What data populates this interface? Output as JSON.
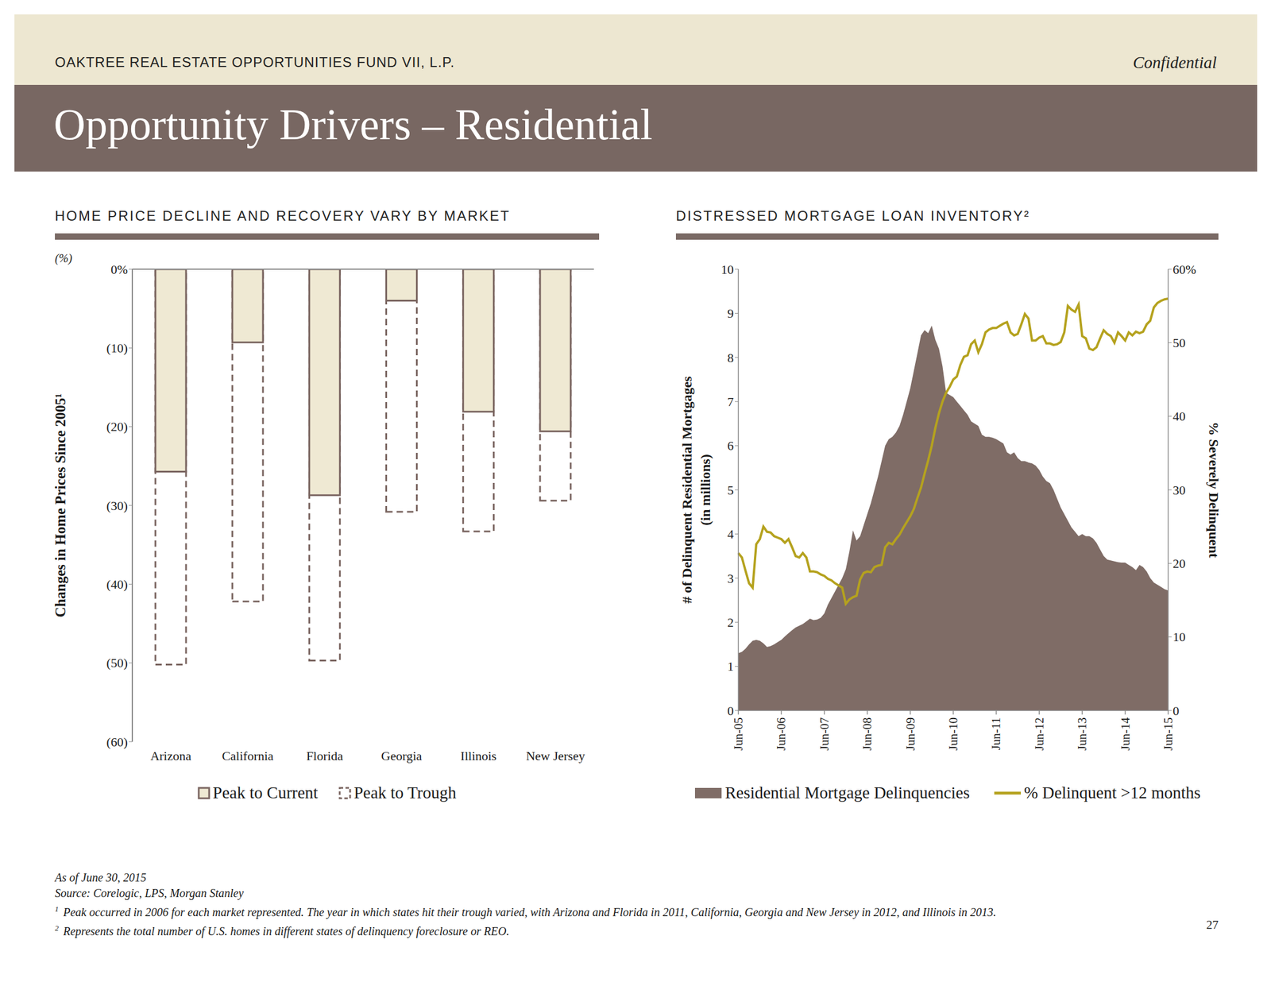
{
  "header": {
    "fund": "OAKTREE REAL ESTATE OPPORTUNITIES FUND VII, L.P.",
    "confidential": "Confidential",
    "title": "Opportunity Drivers – Residential"
  },
  "chart_data": [
    {
      "type": "bar",
      "title": "HOME PRICE DECLINE AND RECOVERY VARY BY MARKET",
      "annotation": "(%)",
      "ylabel": "Changes in Home Prices Since 2005¹",
      "categories": [
        "Arizona",
        "California",
        "Florida",
        "Georgia",
        "Illinois",
        "New Jersey"
      ],
      "series": [
        {
          "name": "Peak to Current",
          "color": "#efe9d3",
          "values": [
            -25.7,
            -9.3,
            -28.7,
            -4.0,
            -18.1,
            -20.6
          ]
        },
        {
          "name": "Peak to Trough",
          "color": "#7a6560",
          "line_style": "dashed",
          "values": [
            -50.2,
            -42.2,
            -49.7,
            -30.8,
            -33.3,
            -29.4
          ]
        }
      ],
      "ylim": [
        -60,
        0
      ],
      "yticks": [
        {
          "value": 0,
          "label": "0%"
        },
        {
          "value": -10,
          "label": "(10)"
        },
        {
          "value": -20,
          "label": "(20)"
        },
        {
          "value": -30,
          "label": "(30)"
        },
        {
          "value": -40,
          "label": "(40)"
        },
        {
          "value": -50,
          "label": "(50)"
        },
        {
          "value": -60,
          "label": "(60)"
        }
      ],
      "grid": false,
      "legend": "bottom"
    },
    {
      "type": "combo",
      "title": "DISTRESSED MORTGAGE LOAN INVENTORY²",
      "ylabel": [
        "# of Delinquent Residential Mortgages",
        "(in millions)"
      ],
      "y2label": "% Severely Delinquent",
      "categories": [
        "Jun-05",
        null,
        null,
        null,
        null,
        null,
        null,
        null,
        null,
        null,
        null,
        null,
        "Jun-06",
        null,
        null,
        null,
        null,
        null,
        null,
        null,
        null,
        null,
        null,
        null,
        "Jun-07",
        null,
        null,
        null,
        null,
        null,
        null,
        null,
        null,
        null,
        null,
        null,
        "Jun-08",
        null,
        null,
        null,
        null,
        null,
        null,
        null,
        null,
        null,
        null,
        null,
        "Jun-09",
        null,
        null,
        null,
        null,
        null,
        null,
        null,
        null,
        null,
        null,
        null,
        "Jun-10",
        null,
        null,
        null,
        null,
        null,
        null,
        null,
        null,
        null,
        null,
        null,
        "Jun-11",
        null,
        null,
        null,
        null,
        null,
        null,
        null,
        null,
        null,
        null,
        null,
        "Jun-12",
        null,
        null,
        null,
        null,
        null,
        null,
        null,
        null,
        null,
        null,
        null,
        "Jun-13",
        null,
        null,
        null,
        null,
        null,
        null,
        null,
        null,
        null,
        null,
        null,
        "Jun-14",
        null,
        null,
        null,
        null,
        null,
        null,
        null,
        null,
        null,
        null,
        null,
        "Jun-15"
      ],
      "series": [
        {
          "name": "Residential Mortgage Delinquencies",
          "type": "area",
          "color": "#7f6c66",
          "values": [
            1.3,
            1.33,
            1.4,
            1.5,
            1.58,
            1.6,
            1.58,
            1.52,
            1.44,
            1.46,
            1.5,
            1.55,
            1.6,
            1.68,
            1.75,
            1.82,
            1.88,
            1.92,
            1.96,
            2.02,
            2.08,
            2.05,
            2.06,
            2.1,
            2.2,
            2.4,
            2.55,
            2.7,
            2.85,
            3.0,
            3.2,
            3.6,
            4.08,
            3.85,
            3.95,
            4.2,
            4.45,
            4.7,
            5.0,
            5.3,
            5.65,
            6.0,
            6.15,
            6.2,
            6.3,
            6.45,
            6.7,
            7.0,
            7.3,
            7.7,
            8.1,
            8.5,
            8.62,
            8.55,
            8.72,
            8.4,
            8.2,
            7.8,
            7.2,
            7.15,
            7.1,
            7.0,
            6.9,
            6.8,
            6.7,
            6.55,
            6.5,
            6.45,
            6.25,
            6.2,
            6.2,
            6.18,
            6.15,
            6.1,
            6.05,
            5.85,
            5.8,
            5.85,
            5.72,
            5.65,
            5.65,
            5.62,
            5.6,
            5.55,
            5.45,
            5.3,
            5.2,
            5.15,
            5.0,
            4.8,
            4.6,
            4.45,
            4.3,
            4.15,
            4.05,
            3.95,
            4.0,
            3.95,
            3.95,
            3.9,
            3.8,
            3.65,
            3.5,
            3.42,
            3.4,
            3.38,
            3.36,
            3.35,
            3.35,
            3.3,
            3.25,
            3.18,
            3.3,
            3.25,
            3.15,
            3.0,
            2.9,
            2.85,
            2.8,
            2.75,
            2.72
          ]
        },
        {
          "name": "% Delinquent >12 months",
          "type": "line",
          "color": "#b5a21e",
          "axis": "y2",
          "values": [
            21.4,
            20.8,
            19.0,
            17.3,
            16.7,
            22.6,
            23.3,
            25.0,
            24.3,
            24.2,
            23.7,
            23.5,
            23.3,
            22.8,
            23.3,
            22.2,
            21.0,
            20.8,
            21.4,
            20.8,
            18.9,
            18.9,
            18.8,
            18.5,
            18.3,
            17.9,
            17.7,
            17.3,
            17.0,
            16.7,
            14.5,
            15.1,
            15.4,
            15.6,
            17.8,
            18.7,
            18.9,
            18.8,
            19.5,
            19.7,
            19.8,
            22.2,
            22.8,
            22.6,
            23.3,
            23.9,
            24.8,
            25.6,
            26.4,
            27.4,
            28.9,
            30.3,
            32.2,
            34.0,
            36.0,
            38.4,
            40.4,
            42.0,
            43.2,
            44.0,
            45.0,
            45.4,
            47.0,
            48.1,
            48.3,
            49.8,
            50.3,
            48.7,
            49.8,
            51.4,
            51.8,
            52.0,
            52.0,
            52.3,
            52.6,
            52.8,
            51.4,
            51.0,
            51.2,
            52.5,
            53.9,
            53.3,
            50.3,
            50.3,
            50.7,
            50.9,
            49.9,
            49.9,
            49.7,
            49.8,
            50.1,
            51.4,
            55.0,
            54.5,
            54.2,
            55.2,
            50.9,
            50.6,
            49.2,
            49.0,
            49.4,
            50.6,
            51.7,
            51.2,
            50.9,
            50.0,
            51.4,
            50.9,
            50.3,
            51.4,
            51.0,
            51.5,
            51.3,
            51.5,
            52.5,
            53.0,
            54.8,
            55.4,
            55.7,
            55.9,
            56.0
          ]
        }
      ],
      "ylim": [
        0,
        10
      ],
      "yticks": [
        0,
        1,
        2,
        3,
        4,
        5,
        6,
        7,
        8,
        9,
        10
      ],
      "y2lim": [
        0,
        60
      ],
      "y2ticks": [
        0,
        10,
        20,
        30,
        40,
        50,
        {
          "value": 60,
          "label": "60%"
        }
      ],
      "grid": false,
      "legend": "bottom"
    }
  ],
  "footer": {
    "as_of": "As of June 30, 2015",
    "source": "Source: Corelogic, LPS, Morgan Stanley",
    "notes": [
      {
        "mark": "1",
        "text": "Peak occurred in 2006 for each market represented. The year in which states hit their trough varied, with Arizona and Florida in 2011, California, Georgia and New Jersey in 2012, and Illinois in 2013."
      },
      {
        "mark": "2",
        "text": "Represents the total number of U.S. homes in different states of delinquency foreclosure or REO."
      }
    ],
    "page": 27
  }
}
